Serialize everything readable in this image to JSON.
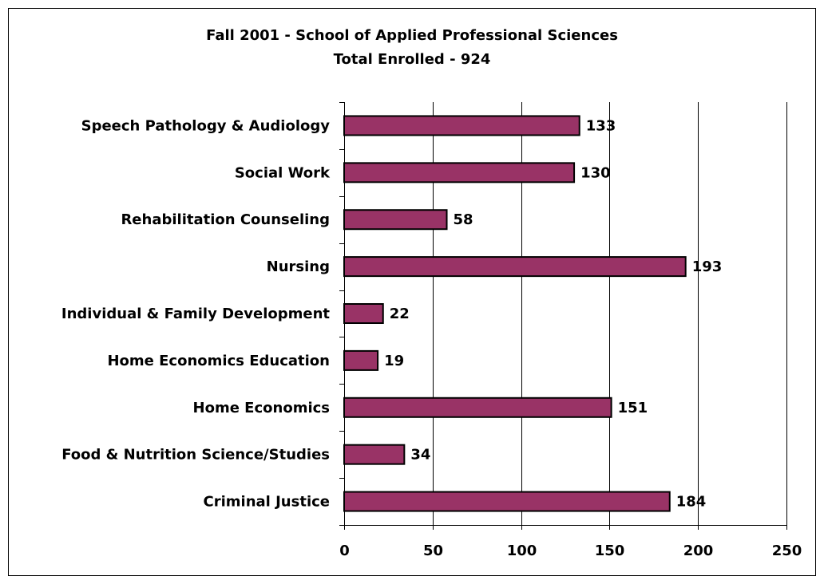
{
  "chart_data": {
    "type": "bar",
    "orientation": "horizontal",
    "title": "Fall 2001 - School of Applied Professional Sciences",
    "subtitle": "Total Enrolled - 924",
    "categories": [
      "Speech Pathology & Audiology",
      "Social Work",
      "Rehabilitation Counseling",
      "Nursing",
      "Individual & Family Development",
      "Home Economics Education",
      "Home Economics",
      "Food & Nutrition Science/Studies",
      "Criminal Justice"
    ],
    "values": [
      133,
      130,
      58,
      193,
      22,
      19,
      151,
      34,
      184
    ],
    "color": "#993366",
    "xlim": [
      0,
      250
    ],
    "xticks": [
      0,
      50,
      100,
      150,
      200,
      250
    ],
    "grid": true
  }
}
